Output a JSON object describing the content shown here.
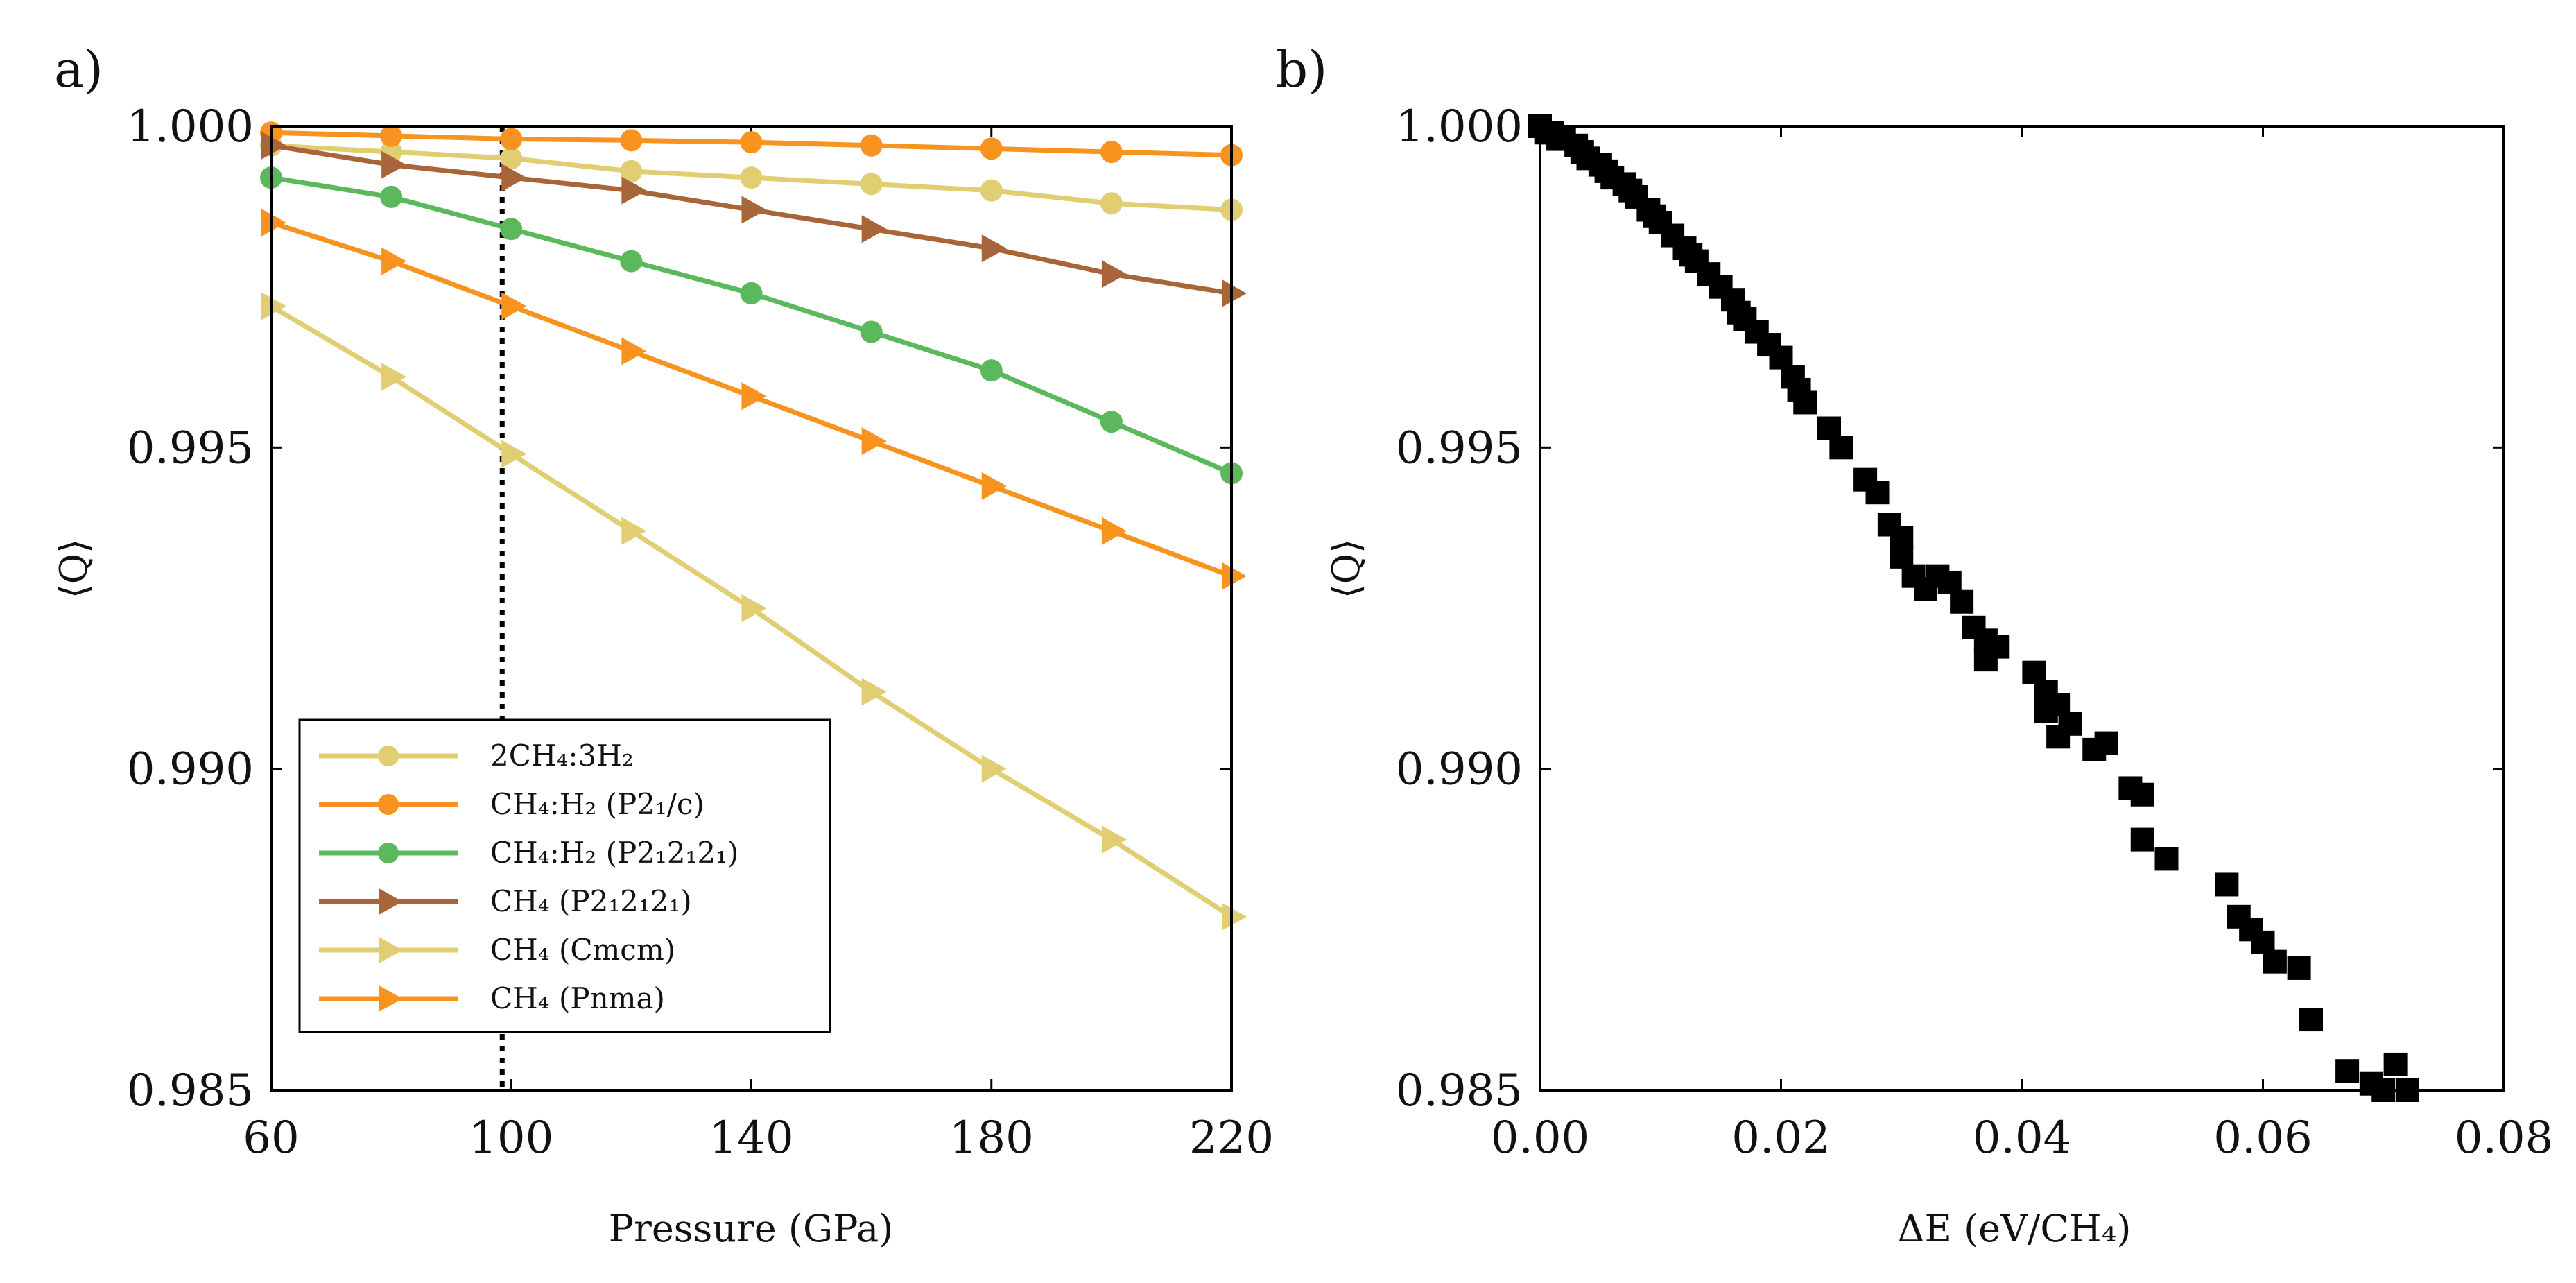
{
  "chart_data": [
    {
      "type": "line",
      "panel_label": "a)",
      "xlabel": "Pressure (GPa)",
      "ylabel": "⟨Q⟩",
      "xlim": [
        60,
        220
      ],
      "ylim": [
        0.985,
        1.0
      ],
      "xticks": [
        60,
        100,
        140,
        180,
        220
      ],
      "yticks": [
        0.985,
        0.99,
        0.995,
        1.0
      ],
      "xtick_labels": [
        "60",
        "100",
        "140",
        "180",
        "220"
      ],
      "ytick_labels": [
        "0.985",
        "0.990",
        "0.995",
        "1.000"
      ],
      "reference_line": {
        "x": 98.5,
        "style": "dotted"
      },
      "x": [
        60,
        80,
        100,
        120,
        140,
        160,
        180,
        200,
        220
      ],
      "legend_position": "bottom-left",
      "series": [
        {
          "name": "2CH₄:3H₂",
          "marker": "circle",
          "color": "#E1CD72",
          "values": [
            0.9997,
            0.9996,
            0.9995,
            0.9993,
            0.9992,
            0.9991,
            0.999,
            0.9988,
            0.9987
          ]
        },
        {
          "name": "CH₄:H₂ (P2₁/c)",
          "marker": "circle",
          "color": "#F7931E",
          "values": [
            0.9999,
            0.99985,
            0.9998,
            0.99978,
            0.99975,
            0.9997,
            0.99965,
            0.9996,
            0.99955
          ]
        },
        {
          "name": "CH₄:H₂ (P2₁2₁2₁)",
          "marker": "circle",
          "color": "#5CB85C",
          "values": [
            0.9992,
            0.9989,
            0.9984,
            0.9979,
            0.9974,
            0.9968,
            0.9962,
            0.9954,
            0.9946
          ]
        },
        {
          "name": "CH₄ (P2₁2₁2₁)",
          "marker": "triangle-right",
          "color": "#A9653A",
          "values": [
            0.9997,
            0.9994,
            0.9992,
            0.999,
            0.9987,
            0.9984,
            0.9981,
            0.9977,
            0.9974
          ]
        },
        {
          "name": "CH₄ (Cmcm)",
          "marker": "triangle-right",
          "color": "#E1CD72",
          "values": [
            0.9972,
            0.9961,
            0.9949,
            0.9937,
            0.9925,
            0.9912,
            0.99,
            0.9889,
            0.9877
          ]
        },
        {
          "name": "CH₄ (Pnma)",
          "marker": "triangle-right",
          "color": "#F7931E",
          "values": [
            0.9985,
            0.9979,
            0.9972,
            0.9965,
            0.9958,
            0.9951,
            0.9944,
            0.9937,
            0.993
          ]
        }
      ]
    },
    {
      "type": "scatter",
      "panel_label": "b)",
      "xlabel": "ΔE (eV/CH₄)",
      "ylabel": "⟨Q⟩",
      "xlim": [
        0.0,
        0.08
      ],
      "ylim": [
        0.985,
        1.0
      ],
      "xticks": [
        0.0,
        0.02,
        0.04,
        0.06,
        0.08
      ],
      "yticks": [
        0.985,
        0.99,
        0.995,
        1.0
      ],
      "xtick_labels": [
        "0.00",
        "0.02",
        "0.04",
        "0.06",
        "0.08"
      ],
      "ytick_labels": [
        "0.985",
        "0.990",
        "0.995",
        "1.000"
      ],
      "marker": "square",
      "color": "#000000",
      "points": [
        [
          0.0,
          1.0
        ],
        [
          0.0005,
          0.9999
        ],
        [
          0.001,
          0.9999
        ],
        [
          0.0015,
          0.9998
        ],
        [
          0.002,
          0.9998
        ],
        [
          0.003,
          0.9997
        ],
        [
          0.0035,
          0.9996
        ],
        [
          0.004,
          0.9995
        ],
        [
          0.005,
          0.9994
        ],
        [
          0.0055,
          0.9993
        ],
        [
          0.006,
          0.9992
        ],
        [
          0.007,
          0.9991
        ],
        [
          0.0075,
          0.999
        ],
        [
          0.008,
          0.9989
        ],
        [
          0.009,
          0.9987
        ],
        [
          0.0095,
          0.9986
        ],
        [
          0.01,
          0.9985
        ],
        [
          0.011,
          0.9983
        ],
        [
          0.012,
          0.9981
        ],
        [
          0.0125,
          0.998
        ],
        [
          0.013,
          0.9979
        ],
        [
          0.014,
          0.9977
        ],
        [
          0.015,
          0.9975
        ],
        [
          0.016,
          0.9973
        ],
        [
          0.0165,
          0.9971
        ],
        [
          0.017,
          0.997
        ],
        [
          0.018,
          0.9968
        ],
        [
          0.019,
          0.9966
        ],
        [
          0.02,
          0.9964
        ],
        [
          0.021,
          0.9961
        ],
        [
          0.0215,
          0.9959
        ],
        [
          0.022,
          0.9957
        ],
        [
          0.024,
          0.9953
        ],
        [
          0.025,
          0.995
        ],
        [
          0.027,
          0.9945
        ],
        [
          0.028,
          0.9943
        ],
        [
          0.029,
          0.9938
        ],
        [
          0.03,
          0.9936
        ],
        [
          0.03,
          0.9933
        ],
        [
          0.031,
          0.993
        ],
        [
          0.032,
          0.9928
        ],
        [
          0.033,
          0.993
        ],
        [
          0.034,
          0.9929
        ],
        [
          0.035,
          0.9926
        ],
        [
          0.036,
          0.9922
        ],
        [
          0.037,
          0.992
        ],
        [
          0.037,
          0.9917
        ],
        [
          0.038,
          0.9919
        ],
        [
          0.041,
          0.9915
        ],
        [
          0.042,
          0.9912
        ],
        [
          0.042,
          0.9909
        ],
        [
          0.043,
          0.991
        ],
        [
          0.043,
          0.9905
        ],
        [
          0.044,
          0.9907
        ],
        [
          0.046,
          0.9903
        ],
        [
          0.047,
          0.9904
        ],
        [
          0.049,
          0.9897
        ],
        [
          0.05,
          0.9896
        ],
        [
          0.05,
          0.9889
        ],
        [
          0.052,
          0.9886
        ],
        [
          0.057,
          0.9882
        ],
        [
          0.058,
          0.9877
        ],
        [
          0.059,
          0.9875
        ],
        [
          0.06,
          0.9873
        ],
        [
          0.061,
          0.987
        ],
        [
          0.063,
          0.9869
        ],
        [
          0.064,
          0.9861
        ],
        [
          0.067,
          0.9853
        ],
        [
          0.069,
          0.9851
        ],
        [
          0.07,
          0.985
        ],
        [
          0.071,
          0.9854
        ],
        [
          0.072,
          0.985
        ]
      ]
    }
  ]
}
